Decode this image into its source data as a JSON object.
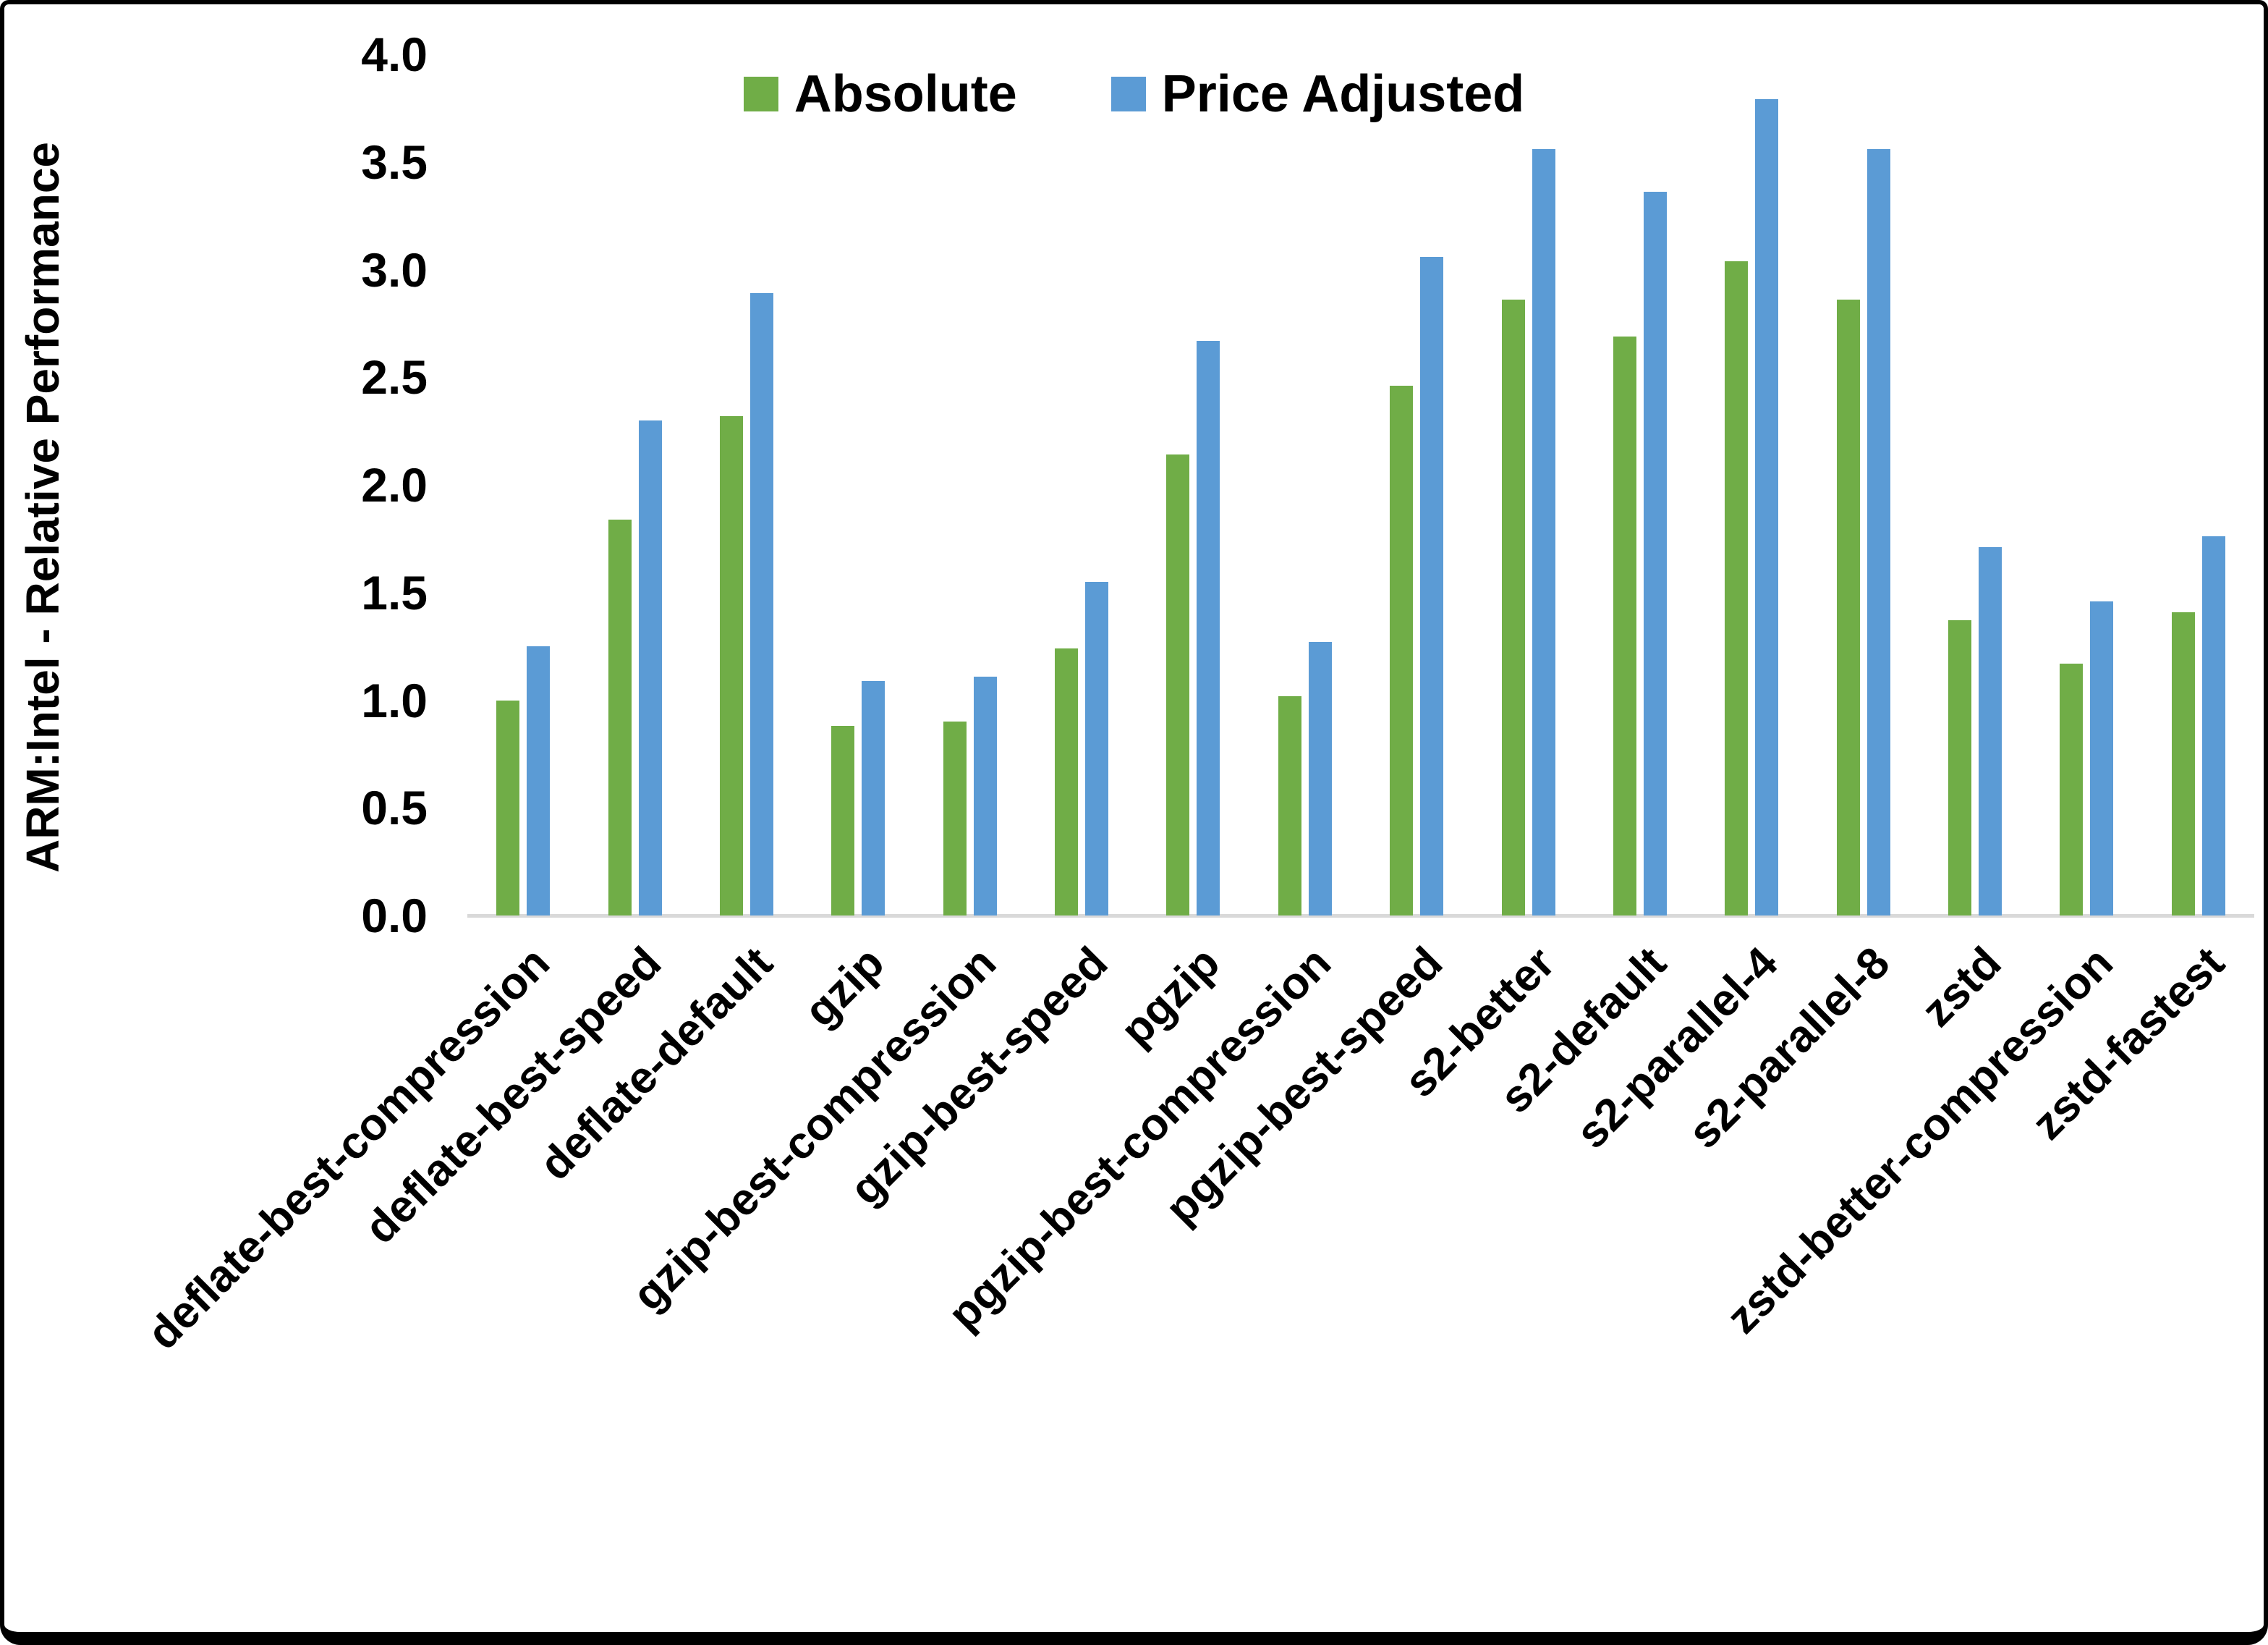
{
  "chart_data": {
    "type": "bar",
    "title": "",
    "xlabel": "",
    "ylabel": "ARM:Intel - Relative Performance",
    "ylim": [
      0.0,
      4.0
    ],
    "ytick_step": 0.5,
    "ytick_labels": [
      "4.0",
      "3.5",
      "3.0",
      "2.5",
      "2.0",
      "1.5",
      "1.0",
      "0.5",
      "0.0"
    ],
    "grid": false,
    "legend_position": "top-center",
    "axis_line_color": "#d9d9d9",
    "categories": [
      "deflate-best-compression",
      "deflate-best-speed",
      "deflate-default",
      "gzip",
      "gzip-best-compression",
      "gzip-best-speed",
      "pgzip",
      "pgzip-best-compression",
      "pgzip-best-speed",
      "s2-better",
      "s2-default",
      "s2-parallel-4",
      "s2-parallel-8",
      "zstd",
      "zstd-better-compression",
      "zstd-fastest"
    ],
    "series": [
      {
        "name": "Absolute",
        "color": "#70AD47",
        "values": [
          1.0,
          1.84,
          2.32,
          0.88,
          0.9,
          1.24,
          2.14,
          1.02,
          2.46,
          2.86,
          2.69,
          3.04,
          2.86,
          1.37,
          1.17,
          1.41
        ]
      },
      {
        "name": "Price Adjusted",
        "color": "#5B9BD5",
        "values": [
          1.25,
          2.3,
          2.89,
          1.09,
          1.11,
          1.55,
          2.67,
          1.27,
          3.06,
          3.56,
          3.36,
          3.79,
          3.56,
          1.71,
          1.46,
          1.76
        ]
      }
    ]
  }
}
